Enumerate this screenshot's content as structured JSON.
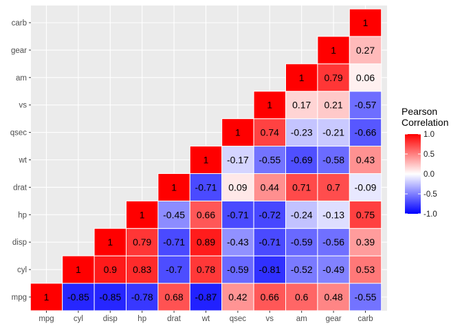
{
  "chart_data": {
    "type": "heatmap",
    "variables": [
      "mpg",
      "cyl",
      "disp",
      "hp",
      "drat",
      "wt",
      "qsec",
      "vs",
      "am",
      "gear",
      "carb"
    ],
    "cells": [
      {
        "x": "mpg",
        "y": "mpg",
        "value": 1,
        "label": "1"
      },
      {
        "x": "cyl",
        "y": "mpg",
        "value": -0.85,
        "label": "-0.85"
      },
      {
        "x": "cyl",
        "y": "cyl",
        "value": 1,
        "label": "1"
      },
      {
        "x": "disp",
        "y": "mpg",
        "value": -0.85,
        "label": "-0.85"
      },
      {
        "x": "disp",
        "y": "cyl",
        "value": 0.9,
        "label": "0.9"
      },
      {
        "x": "disp",
        "y": "disp",
        "value": 1,
        "label": "1"
      },
      {
        "x": "hp",
        "y": "mpg",
        "value": -0.78,
        "label": "-0.78"
      },
      {
        "x": "hp",
        "y": "cyl",
        "value": 0.83,
        "label": "0.83"
      },
      {
        "x": "hp",
        "y": "disp",
        "value": 0.79,
        "label": "0.79"
      },
      {
        "x": "hp",
        "y": "hp",
        "value": 1,
        "label": "1"
      },
      {
        "x": "drat",
        "y": "mpg",
        "value": 0.68,
        "label": "0.68"
      },
      {
        "x": "drat",
        "y": "cyl",
        "value": -0.7,
        "label": "-0.7"
      },
      {
        "x": "drat",
        "y": "disp",
        "value": -0.71,
        "label": "-0.71"
      },
      {
        "x": "drat",
        "y": "hp",
        "value": -0.45,
        "label": "-0.45"
      },
      {
        "x": "drat",
        "y": "drat",
        "value": 1,
        "label": "1"
      },
      {
        "x": "wt",
        "y": "mpg",
        "value": -0.87,
        "label": "-0.87"
      },
      {
        "x": "wt",
        "y": "cyl",
        "value": 0.78,
        "label": "0.78"
      },
      {
        "x": "wt",
        "y": "disp",
        "value": 0.89,
        "label": "0.89"
      },
      {
        "x": "wt",
        "y": "hp",
        "value": 0.66,
        "label": "0.66"
      },
      {
        "x": "wt",
        "y": "drat",
        "value": -0.71,
        "label": "-0.71"
      },
      {
        "x": "wt",
        "y": "wt",
        "value": 1,
        "label": "1"
      },
      {
        "x": "qsec",
        "y": "mpg",
        "value": 0.42,
        "label": "0.42"
      },
      {
        "x": "qsec",
        "y": "cyl",
        "value": -0.59,
        "label": "-0.59"
      },
      {
        "x": "qsec",
        "y": "disp",
        "value": -0.43,
        "label": "-0.43"
      },
      {
        "x": "qsec",
        "y": "hp",
        "value": -0.71,
        "label": "-0.71"
      },
      {
        "x": "qsec",
        "y": "drat",
        "value": 0.09,
        "label": "0.09"
      },
      {
        "x": "qsec",
        "y": "wt",
        "value": -0.17,
        "label": "-0.17"
      },
      {
        "x": "qsec",
        "y": "qsec",
        "value": 1,
        "label": "1"
      },
      {
        "x": "vs",
        "y": "mpg",
        "value": 0.66,
        "label": "0.66"
      },
      {
        "x": "vs",
        "y": "cyl",
        "value": -0.81,
        "label": "-0.81"
      },
      {
        "x": "vs",
        "y": "disp",
        "value": -0.71,
        "label": "-0.71"
      },
      {
        "x": "vs",
        "y": "hp",
        "value": -0.72,
        "label": "-0.72"
      },
      {
        "x": "vs",
        "y": "drat",
        "value": 0.44,
        "label": "0.44"
      },
      {
        "x": "vs",
        "y": "wt",
        "value": -0.55,
        "label": "-0.55"
      },
      {
        "x": "vs",
        "y": "qsec",
        "value": 0.74,
        "label": "0.74"
      },
      {
        "x": "vs",
        "y": "vs",
        "value": 1,
        "label": "1"
      },
      {
        "x": "am",
        "y": "mpg",
        "value": 0.6,
        "label": "0.6"
      },
      {
        "x": "am",
        "y": "cyl",
        "value": -0.52,
        "label": "-0.52"
      },
      {
        "x": "am",
        "y": "disp",
        "value": -0.59,
        "label": "-0.59"
      },
      {
        "x": "am",
        "y": "hp",
        "value": -0.24,
        "label": "-0.24"
      },
      {
        "x": "am",
        "y": "drat",
        "value": 0.71,
        "label": "0.71"
      },
      {
        "x": "am",
        "y": "wt",
        "value": -0.69,
        "label": "-0.69"
      },
      {
        "x": "am",
        "y": "qsec",
        "value": -0.23,
        "label": "-0.23"
      },
      {
        "x": "am",
        "y": "vs",
        "value": 0.17,
        "label": "0.17"
      },
      {
        "x": "am",
        "y": "am",
        "value": 1,
        "label": "1"
      },
      {
        "x": "gear",
        "y": "mpg",
        "value": 0.48,
        "label": "0.48"
      },
      {
        "x": "gear",
        "y": "cyl",
        "value": -0.49,
        "label": "-0.49"
      },
      {
        "x": "gear",
        "y": "disp",
        "value": -0.56,
        "label": "-0.56"
      },
      {
        "x": "gear",
        "y": "hp",
        "value": -0.13,
        "label": "-0.13"
      },
      {
        "x": "gear",
        "y": "drat",
        "value": 0.7,
        "label": "0.7"
      },
      {
        "x": "gear",
        "y": "wt",
        "value": -0.58,
        "label": "-0.58"
      },
      {
        "x": "gear",
        "y": "qsec",
        "value": -0.21,
        "label": "-0.21"
      },
      {
        "x": "gear",
        "y": "vs",
        "value": 0.21,
        "label": "0.21"
      },
      {
        "x": "gear",
        "y": "am",
        "value": 0.79,
        "label": "0.79"
      },
      {
        "x": "gear",
        "y": "gear",
        "value": 1,
        "label": "1"
      },
      {
        "x": "carb",
        "y": "mpg",
        "value": -0.55,
        "label": "-0.55"
      },
      {
        "x": "carb",
        "y": "cyl",
        "value": 0.53,
        "label": "0.53"
      },
      {
        "x": "carb",
        "y": "disp",
        "value": 0.39,
        "label": "0.39"
      },
      {
        "x": "carb",
        "y": "hp",
        "value": 0.75,
        "label": "0.75"
      },
      {
        "x": "carb",
        "y": "drat",
        "value": -0.09,
        "label": "-0.09"
      },
      {
        "x": "carb",
        "y": "wt",
        "value": 0.43,
        "label": "0.43"
      },
      {
        "x": "carb",
        "y": "qsec",
        "value": -0.66,
        "label": "-0.66"
      },
      {
        "x": "carb",
        "y": "vs",
        "value": -0.57,
        "label": "-0.57"
      },
      {
        "x": "carb",
        "y": "am",
        "value": 0.06,
        "label": "0.06"
      },
      {
        "x": "carb",
        "y": "gear",
        "value": 0.27,
        "label": "0.27"
      },
      {
        "x": "carb",
        "y": "carb",
        "value": 1,
        "label": "1"
      }
    ],
    "legend": {
      "title": "Pearson\nCorrelation",
      "position": "right",
      "limits": [
        -1,
        1
      ],
      "ticks": [
        1.0,
        0.5,
        0.0,
        -0.5,
        -1.0
      ],
      "tick_labels": [
        "1.0",
        "0.5",
        "0.0",
        "-0.5",
        "-1.0"
      ],
      "colors": {
        "low": "#0000ff",
        "mid": "#ffffff",
        "high": "#ff0000"
      }
    },
    "xlabel": "",
    "ylabel": "",
    "grid": true,
    "colors": {
      "panel_background": "#ebebeb",
      "grid": "#ffffff",
      "tile_border": "#ffffff"
    }
  }
}
